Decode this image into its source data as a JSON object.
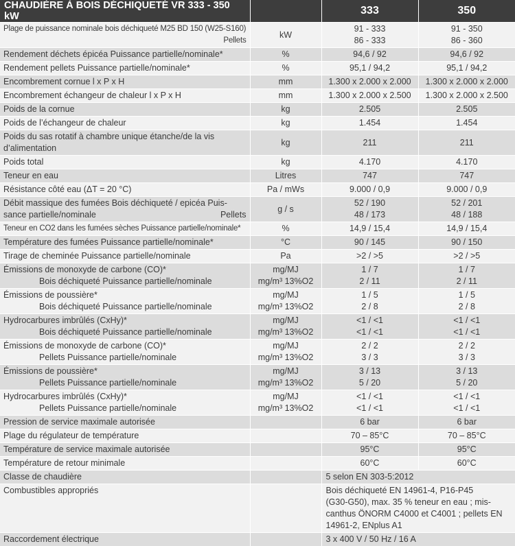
{
  "header": {
    "title": "CHAUDIÈRE À BOIS DÉCHIQUETÉ VR 333 - 350 kW",
    "col_333": "333",
    "col_350": "350"
  },
  "rows": {
    "r1": {
      "l1": "Plage de puissance nominale bois déchiqueté M25 BD 150 (W25-S160)",
      "l2": "Pellets",
      "unit": "kW",
      "a1": "91 - 333",
      "a2": "86 - 333",
      "b1": "91 - 350",
      "b2": "86 - 360"
    },
    "r2": {
      "label": "Rendement déchets épicéa Puissance partielle/nominale*",
      "unit": "%",
      "a": "94,6 / 92",
      "b": "94,6 / 92"
    },
    "r3": {
      "label": "Rendement pellets Puissance partielle/nominale*",
      "unit": "%",
      "a": "95,1 / 94,2",
      "b": "95,1 / 94,2"
    },
    "r4": {
      "label": "Encombrement cornue l x P x H",
      "unit": "mm",
      "a": "1.300 x 2.000 x 2.000",
      "b": "1.300 x 2.000 x 2.000"
    },
    "r5": {
      "label": "Encombrement échangeur de chaleur l x P x H",
      "unit": "mm",
      "a": "1.300 x 2.000 x 2.500",
      "b": "1.300 x 2.000 x 2.500"
    },
    "r6": {
      "label": "Poids de la cornue",
      "unit": "kg",
      "a": "2.505",
      "b": "2.505"
    },
    "r7": {
      "label": "Poids de l’échangeur de chaleur",
      "unit": "kg",
      "a": "1.454",
      "b": "1.454"
    },
    "r8": {
      "l1": "Poids du sas rotatif à chambre unique étanche/de la vis",
      "l2": "d’alimentation",
      "unit": "kg",
      "a": "211",
      "b": "211"
    },
    "r9": {
      "label": "Poids total",
      "unit": "kg",
      "a": "4.170",
      "b": "4.170"
    },
    "r10": {
      "label": "Teneur en eau",
      "unit": "Litres",
      "a": "747",
      "b": "747"
    },
    "r11": {
      "label": "Résistance côté eau (ΔT = 20 °C)",
      "unit": "Pa / mWs",
      "a": "9.000 / 0,9",
      "b": "9.000 / 0,9"
    },
    "r12": {
      "l1": "Débit massique des fumées Bois déchiqueté / epicéa Puis-",
      "l2a": "sance partielle/nominale",
      "l2b": "Pellets",
      "unit": "g / s",
      "a1": "52 / 190",
      "a2": "48 / 173",
      "b1": "52 / 201",
      "b2": "48 / 188"
    },
    "r13": {
      "label": "Teneur en CO2 dans les fumées sèches Puissance partielle/nominale*",
      "unit": "%",
      "a": "14,9 / 15,4",
      "b": "14,9 / 15,4"
    },
    "r14": {
      "label": "Température des fumées Puissance partielle/nominale*",
      "unit": "°C",
      "a": "90 / 145",
      "b": "90 / 150"
    },
    "r15": {
      "label": "Tirage de cheminée Puissance partielle/nominale",
      "unit": "Pa",
      "a": ">2 / >5",
      "b": ">2 / >5"
    },
    "r16": {
      "l1": "Émissions de monoxyde de carbone (CO)*",
      "l2": "Bois déchiqueté Puissance partielle/nominale",
      "u1": "mg/MJ",
      "u2": "mg/m³ 13%O2",
      "a1": "1 / 7",
      "a2": "2 / 11",
      "b1": "1 / 7",
      "b2": "2 / 11"
    },
    "r17": {
      "l1": "Émissions de poussière*",
      "l2": "Bois déchiqueté Puissance partielle/nominale",
      "u1": "mg/MJ",
      "u2": "mg/m³ 13%O2",
      "a1": "1 / 5",
      "a2": "2 / 8",
      "b1": "1 / 5",
      "b2": "2 / 8"
    },
    "r18": {
      "l1": "Hydrocarbures imbrûlés (CxHy)*",
      "l2": "Bois déchiqueté Puissance partielle/nominale",
      "u1": "mg/MJ",
      "u2": "mg/m³ 13%O2",
      "a1": "<1 / <1",
      "a2": "<1 / <1",
      "b1": "<1 / <1",
      "b2": "<1 / <1"
    },
    "r19": {
      "l1": "Émissions de monoxyde de carbone (CO)*",
      "l2": "Pellets Puissance partielle/nominale",
      "u1": "mg/MJ",
      "u2": "mg/m³ 13%O2",
      "a1": "2 / 2",
      "a2": "3 / 3",
      "b1": "2 / 2",
      "b2": "3 / 3"
    },
    "r20": {
      "l1": "Émissions de poussière*",
      "l2": "Pellets Puissance partielle/nominale",
      "u1": "mg/MJ",
      "u2": "mg/m³ 13%O2",
      "a1": "3 / 13",
      "a2": "5 / 20",
      "b1": "3 / 13",
      "b2": "5 / 20"
    },
    "r21": {
      "l1": "Hydrocarbures imbrûlés (CxHy)*",
      "l2": "Pellets Puissance partielle/nominale",
      "u1": "mg/MJ",
      "u2": "mg/m³ 13%O2",
      "a1": "<1 / <1",
      "a2": "<1 / <1",
      "b1": "<1 / <1",
      "b2": "<1 / <1"
    },
    "r22": {
      "label": "Pression de service maximale autorisée",
      "unit": "",
      "a": "6 bar",
      "b": "6 bar"
    },
    "r23": {
      "label": "Plage du régulateur de température",
      "unit": "",
      "a": "70 – 85°C",
      "b": "70 – 85°C"
    },
    "r24": {
      "label": "Température de service maximale autorisée",
      "unit": "",
      "a": "95°C",
      "b": "95°C"
    },
    "r25": {
      "label": "Température de retour minimale",
      "unit": "",
      "a": "60°C",
      "b": "60°C"
    },
    "r26": {
      "label": "Classe de chaudière",
      "unit": "",
      "value": "5 selon EN 303-5:2012"
    },
    "r27": {
      "label": "Combustibles appropriés",
      "unit": "",
      "v1": "Bois déchiqueté EN 14961-4, P16-P45",
      "v2": "(G30-G50), max. 35 % teneur en eau ; mis-",
      "v3": "canthus ÖNORM C4000 et C4001 ; pellets EN",
      "v4": "14961-2, ENplus A1"
    },
    "r28": {
      "label": "Raccordement électrique",
      "unit": "",
      "value": "3 x 400 V / 50 Hz / 16 A"
    }
  }
}
